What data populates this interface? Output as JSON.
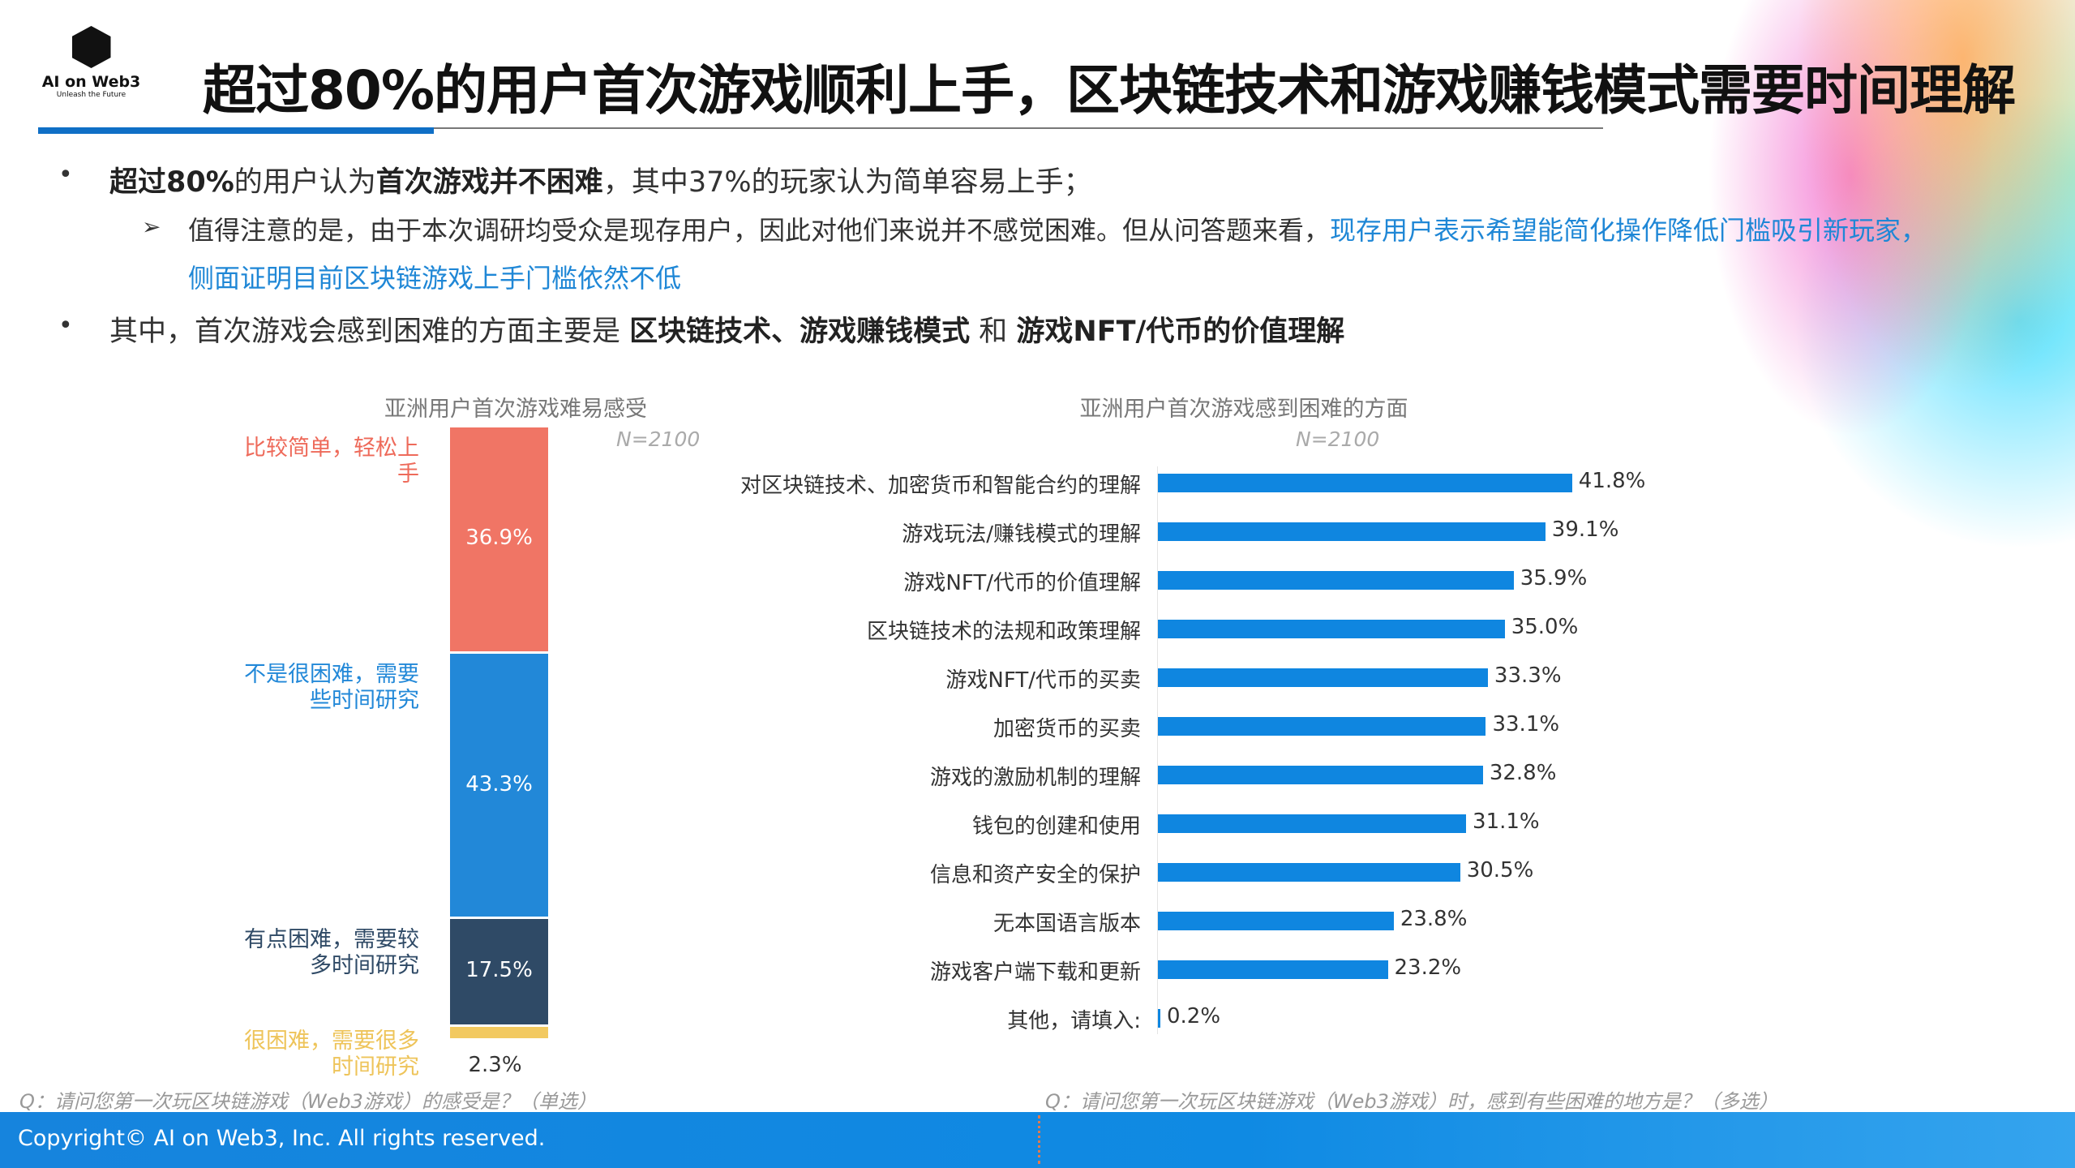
{
  "logo": {
    "name": "AI on Web3",
    "tagline": "Unleash the Future"
  },
  "title": "超过80%的用户首次游戏顺利上手，区块链技术和游戏赚钱模式需要时间理解",
  "bullets": {
    "b1": {
      "p1": "超过80%",
      "p2": "的用户认为",
      "p3": "首次游戏并不困难",
      "p4": "，其中37%的玩家认为简单容易上手；"
    },
    "sub": {
      "text": "值得注意的是，由于本次调研均受众是现存用户，因此对他们来说并不感觉困难。但从问答题来看，",
      "highlight1": "现存用户表示希望能简化操作降低门槛吸引新玩家，",
      "highlight2": "侧面证明目前区块链游戏上手门槛依然不低"
    },
    "b2": {
      "p1": "其中，首次游戏会感到困难的方面主要是 ",
      "p2": "区块链技术、游戏赚钱模式",
      "p3": " 和 ",
      "p4": "游戏NFT/代币的价值理解"
    }
  },
  "chart_data": [
    {
      "type": "bar",
      "stacked": true,
      "title": "亚洲用户首次游戏难易感受",
      "sample": "N=2100",
      "categories": [
        "比较简单，轻松上手",
        "不是很困难，需要些时间研究",
        "有点困难，需要较多时间研究",
        "很困难，需要很多时间研究"
      ],
      "values": [
        36.9,
        43.3,
        17.5,
        2.3
      ],
      "labels": [
        "36.9%",
        "43.3%",
        "17.5%",
        "2.3%"
      ],
      "colors": [
        "#f07565",
        "#2288d8",
        "#2f4a66",
        "#f2c960"
      ],
      "question": "Q：请问您第一次玩区块链游戏（Web3游戏）的感受是？（单选）"
    },
    {
      "type": "bar",
      "orientation": "horizontal",
      "title": "亚洲用户首次游戏感到困难的方面",
      "sample": "N=2100",
      "categories": [
        "对区块链技术、加密货币和智能合约的理解",
        "游戏玩法/赚钱模式的理解",
        "游戏NFT/代币的价值理解",
        "区块链技术的法规和政策理解",
        "游戏NFT/代币的买卖",
        "加密货币的买卖",
        "游戏的激励机制的理解",
        "钱包的创建和使用",
        "信息和资产安全的保护",
        "无本国语言版本",
        "游戏客户端下载和更新",
        "其他，请填入:"
      ],
      "values": [
        41.8,
        39.1,
        35.9,
        35.0,
        33.3,
        33.1,
        32.8,
        31.1,
        30.5,
        23.8,
        23.2,
        0.2
      ],
      "labels": [
        "41.8%",
        "39.1%",
        "35.9%",
        "35.0%",
        "33.3%",
        "33.1%",
        "32.8%",
        "31.1%",
        "30.5%",
        "23.8%",
        "23.2%",
        "0.2%"
      ],
      "color": "#0f86e0",
      "question": "Q：请问您第一次玩区块链游戏（Web3游戏）时，感到有些困难的地方是？（多选）"
    }
  ],
  "footer": {
    "copyright": "Copyright© AI on Web3, Inc. All rights reserved."
  }
}
